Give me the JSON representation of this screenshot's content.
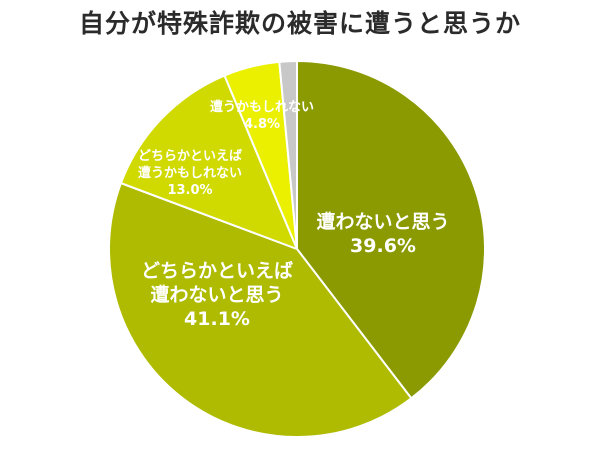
{
  "chart_data": {
    "type": "pie",
    "title": "自分が特殊詐欺の被害に遭うと思うか",
    "start_angle_deg": 0,
    "direction": "clockwise",
    "slices": [
      {
        "label_lines": [
          "遭わないと思う"
        ],
        "value": 39.6,
        "value_label": "39.6%",
        "color": "#8a9a00"
      },
      {
        "label_lines": [
          "どちらかといえば",
          "遭わないと思う"
        ],
        "value": 41.1,
        "value_label": "41.1%",
        "color": "#aebb00"
      },
      {
        "label_lines": [
          "どちらかといえば",
          "遭うかもしれない"
        ],
        "value": 13.0,
        "value_label": "13.0%",
        "color": "#d0da00"
      },
      {
        "label_lines": [
          "遭うかもしれない"
        ],
        "value": 4.8,
        "value_label": "4.8%",
        "color": "#eaf000"
      },
      {
        "label_lines": [],
        "value": 1.5,
        "value_label": "",
        "color": "#c8c8c8"
      }
    ]
  }
}
